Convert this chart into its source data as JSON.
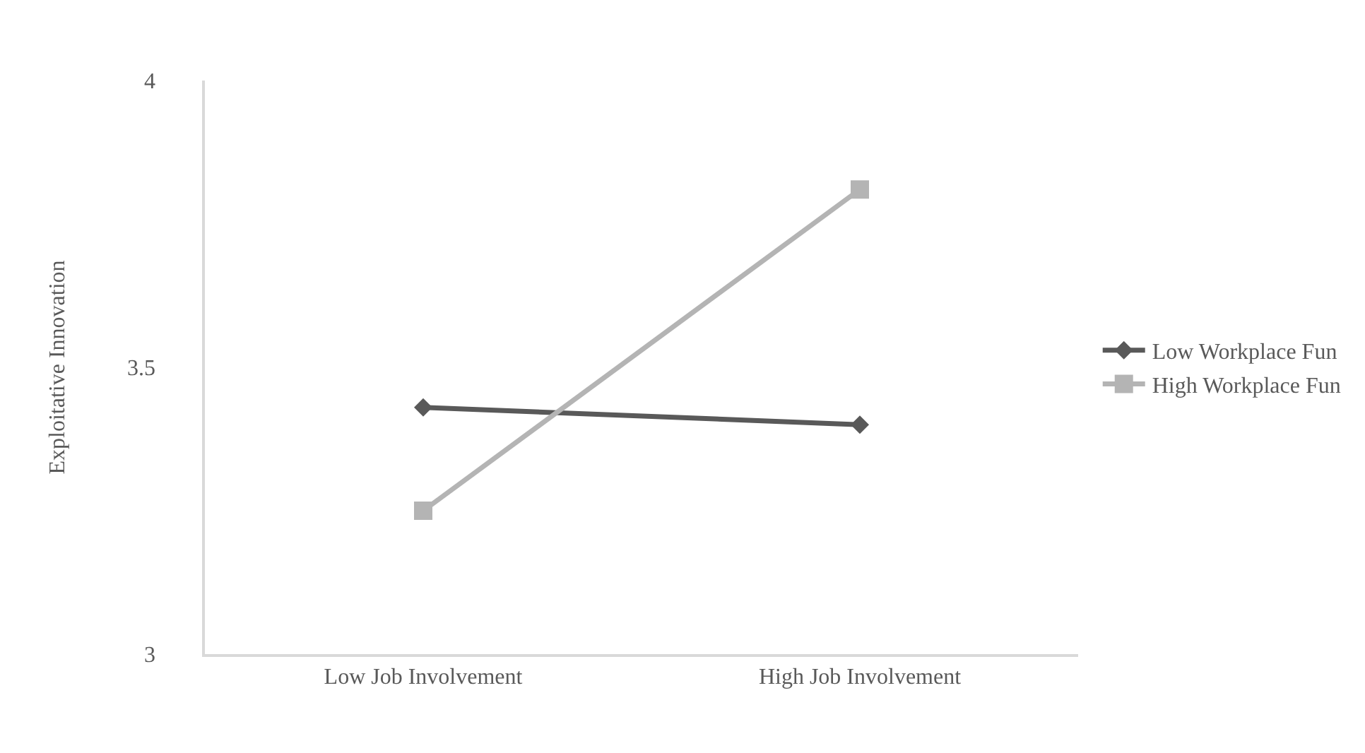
{
  "chart_data": {
    "type": "line",
    "ylabel": "Exploitative Innovation",
    "categories": [
      "Low Job Involvement",
      "High Job Involvement"
    ],
    "series": [
      {
        "name": "Low Workplace Fun",
        "color": "#595959",
        "marker": "diamond",
        "values": [
          3.43,
          3.4
        ]
      },
      {
        "name": "High Workplace Fun",
        "color": "#b4b4b4",
        "marker": "square",
        "values": [
          3.25,
          3.81
        ]
      }
    ],
    "ylim": [
      3,
      4
    ],
    "yticks": [
      3,
      3.5,
      4
    ],
    "grid": false,
    "legend": "right"
  }
}
